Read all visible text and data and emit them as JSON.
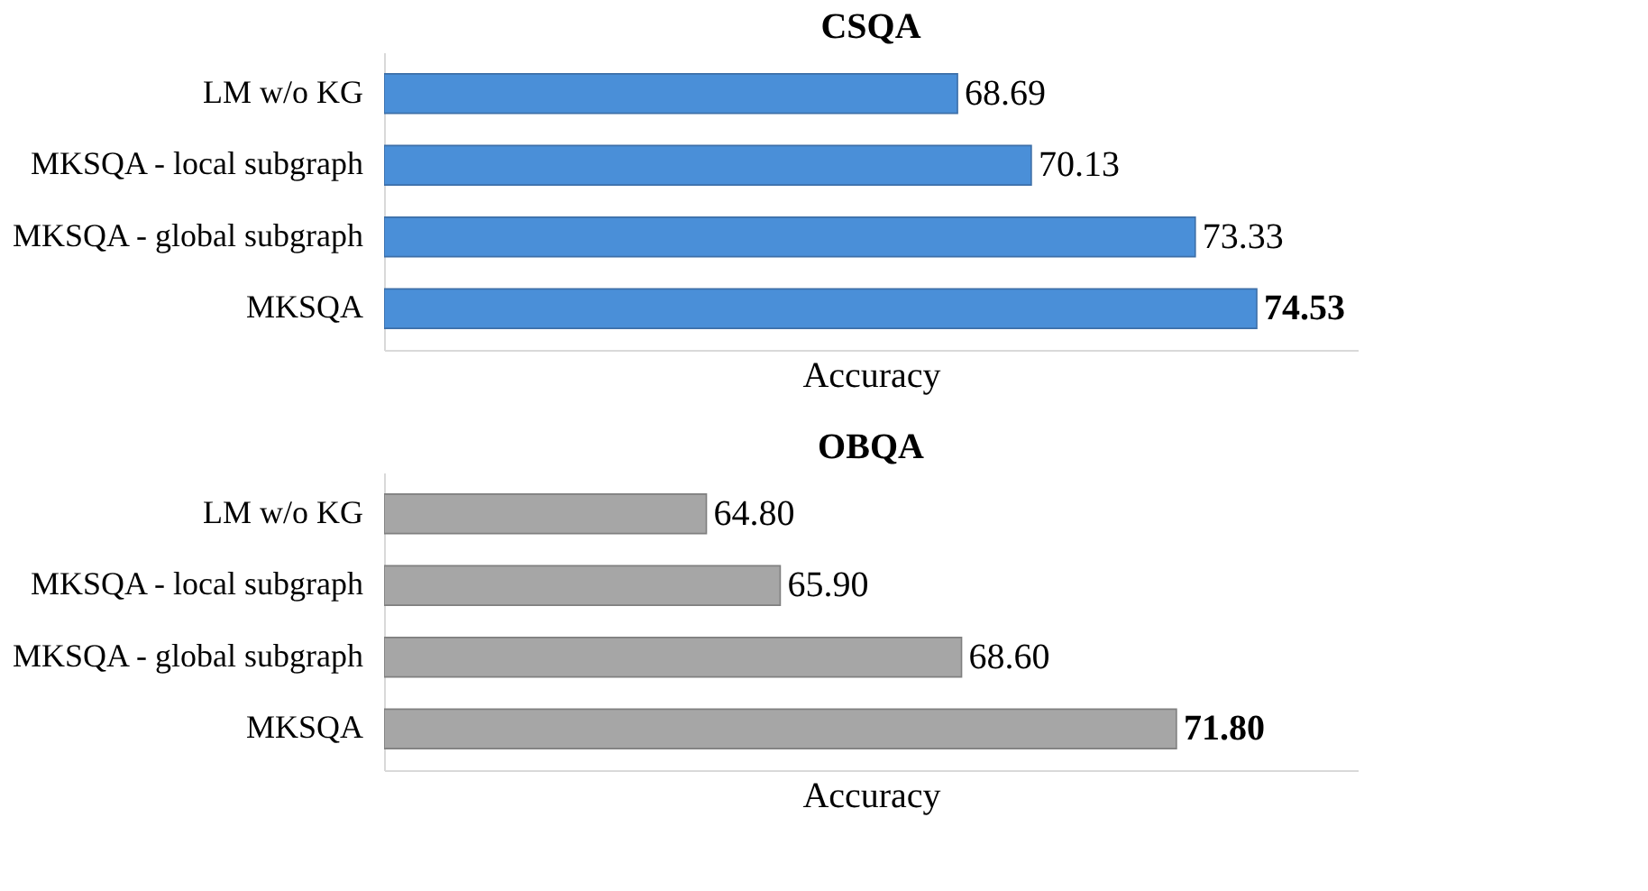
{
  "chart_data": [
    {
      "type": "bar",
      "orientation": "horizontal",
      "title": "CSQA",
      "xlabel": "Accuracy",
      "categories": [
        "LM w/o KG",
        "MKSQA - local subgraph",
        "MKSQA - global subgraph",
        "MKSQA"
      ],
      "values": [
        68.69,
        70.13,
        73.33,
        74.53
      ],
      "value_labels": [
        "68.69",
        "70.13",
        "73.33",
        "74.53"
      ],
      "color": "#4a8fd8",
      "xlim": [
        57.5,
        76.5
      ],
      "tick_labels": "y",
      "grid": false
    },
    {
      "type": "bar",
      "orientation": "horizontal",
      "title": "OBQA",
      "xlabel": "Accuracy",
      "categories": [
        "LM w/o KG",
        "MKSQA - local subgraph",
        "MKSQA - global subgraph",
        "MKSQA"
      ],
      "values": [
        64.8,
        65.9,
        68.6,
        71.8
      ],
      "value_labels": [
        "64.80",
        "65.90",
        "68.60",
        "71.80"
      ],
      "color": "#a6a6a6",
      "xlim": [
        60,
        74.5
      ],
      "tick_labels": "y",
      "grid": false
    }
  ]
}
